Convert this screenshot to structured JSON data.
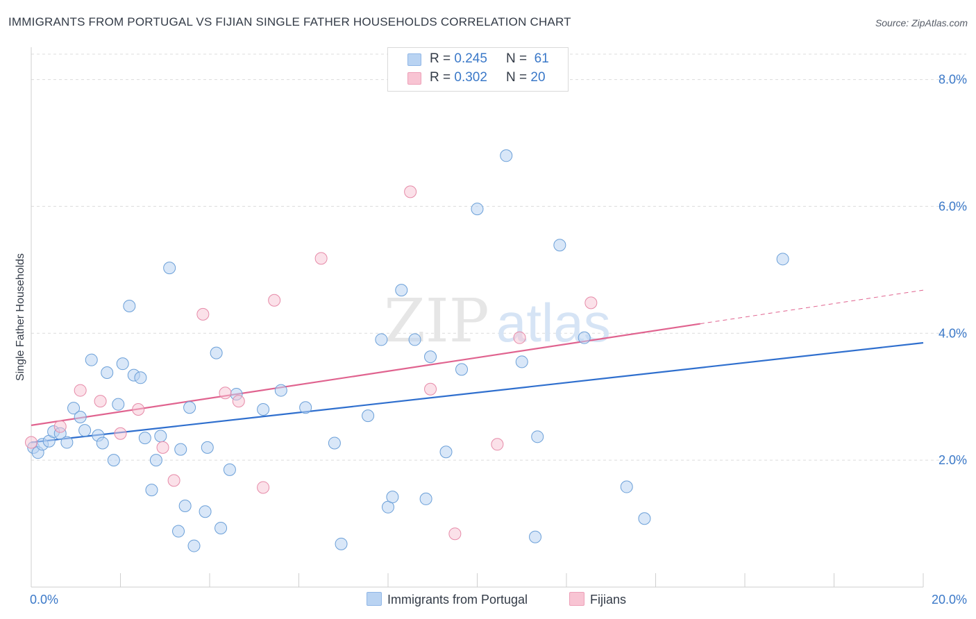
{
  "title": "IMMIGRANTS FROM PORTUGAL VS FIJIAN SINGLE FATHER HOUSEHOLDS CORRELATION CHART",
  "source": "Source: ZipAtlas.com",
  "watermark": {
    "zip": "ZIP",
    "atlas": "atlas"
  },
  "legend": {
    "r_label": "R =",
    "n_label": "N =",
    "rows": [
      {
        "r": "0.245",
        "n": "61"
      },
      {
        "r": "0.302",
        "n": "20"
      }
    ]
  },
  "colors": {
    "blue_fill": "#b9d3f2",
    "blue_stroke": "#6a9fd8",
    "blue_line": "#2f6fce",
    "pink_fill": "#f8c4d3",
    "pink_stroke": "#e68aa8",
    "pink_line": "#e0638f",
    "tick_text": "#3a78c8"
  },
  "chart_data": {
    "type": "scatter",
    "ylabel": "Single Father Households",
    "xlim": [
      0,
      20
    ],
    "ylim": [
      0,
      8
    ],
    "x_tick_labels": [
      "0.0%",
      "20.0%"
    ],
    "y_ticks": [
      2,
      4,
      6,
      8
    ],
    "y_tick_labels": [
      "2.0%",
      "4.0%",
      "6.0%",
      "8.0%"
    ],
    "grid": true,
    "series": [
      {
        "name": "Immigrants from Portugal",
        "color": "#b9d3f2",
        "trend": {
          "x": [
            0,
            20
          ],
          "y": [
            2.28,
            3.85
          ]
        },
        "points": [
          [
            0.05,
            2.2
          ],
          [
            0.15,
            2.12
          ],
          [
            0.25,
            2.25
          ],
          [
            0.4,
            2.3
          ],
          [
            0.5,
            2.45
          ],
          [
            0.65,
            2.42
          ],
          [
            0.8,
            2.28
          ],
          [
            0.95,
            2.82
          ],
          [
            1.1,
            2.68
          ],
          [
            1.2,
            2.47
          ],
          [
            1.35,
            3.58
          ],
          [
            1.5,
            2.39
          ],
          [
            1.6,
            2.27
          ],
          [
            1.7,
            3.38
          ],
          [
            1.85,
            2.0
          ],
          [
            1.95,
            2.88
          ],
          [
            2.05,
            3.52
          ],
          [
            2.2,
            4.43
          ],
          [
            2.3,
            3.34
          ],
          [
            2.45,
            3.3
          ],
          [
            2.55,
            2.35
          ],
          [
            2.7,
            1.53
          ],
          [
            2.8,
            2.0
          ],
          [
            2.9,
            2.38
          ],
          [
            3.1,
            5.03
          ],
          [
            3.3,
            0.88
          ],
          [
            3.35,
            2.17
          ],
          [
            3.45,
            1.28
          ],
          [
            3.55,
            2.83
          ],
          [
            3.65,
            0.65
          ],
          [
            3.9,
            1.19
          ],
          [
            3.95,
            2.2
          ],
          [
            4.15,
            3.69
          ],
          [
            4.25,
            0.93
          ],
          [
            4.45,
            1.85
          ],
          [
            4.6,
            3.04
          ],
          [
            5.2,
            2.8
          ],
          [
            5.6,
            3.1
          ],
          [
            6.15,
            2.83
          ],
          [
            6.8,
            2.27
          ],
          [
            6.95,
            0.68
          ],
          [
            7.55,
            2.7
          ],
          [
            7.85,
            3.9
          ],
          [
            8.0,
            1.26
          ],
          [
            8.1,
            1.42
          ],
          [
            8.3,
            4.68
          ],
          [
            8.6,
            3.9
          ],
          [
            8.85,
            1.39
          ],
          [
            8.95,
            3.63
          ],
          [
            9.3,
            2.13
          ],
          [
            9.65,
            3.43
          ],
          [
            10.0,
            5.96
          ],
          [
            10.65,
            6.8
          ],
          [
            11.0,
            3.55
          ],
          [
            11.3,
            0.79
          ],
          [
            11.85,
            5.39
          ],
          [
            12.4,
            3.93
          ],
          [
            13.35,
            1.58
          ],
          [
            13.75,
            1.08
          ],
          [
            16.85,
            5.17
          ],
          [
            11.35,
            2.37
          ]
        ]
      },
      {
        "name": "Fijians",
        "color": "#f8c4d3",
        "trend": {
          "x": [
            0,
            15
          ],
          "y": [
            2.55,
            4.15
          ]
        },
        "trend_dashed": {
          "x": [
            15,
            20
          ],
          "y": [
            4.15,
            4.68
          ]
        },
        "points": [
          [
            0.0,
            2.28
          ],
          [
            0.65,
            2.53
          ],
          [
            1.1,
            3.1
          ],
          [
            1.55,
            2.93
          ],
          [
            2.0,
            2.42
          ],
          [
            2.4,
            2.8
          ],
          [
            2.95,
            2.2
          ],
          [
            3.2,
            1.68
          ],
          [
            3.85,
            4.3
          ],
          [
            4.35,
            3.06
          ],
          [
            4.65,
            2.93
          ],
          [
            5.2,
            1.57
          ],
          [
            5.45,
            4.52
          ],
          [
            6.5,
            5.18
          ],
          [
            8.5,
            6.23
          ],
          [
            8.95,
            3.12
          ],
          [
            9.5,
            0.84
          ],
          [
            10.45,
            2.25
          ],
          [
            10.95,
            3.93
          ],
          [
            12.55,
            4.48
          ]
        ]
      }
    ]
  },
  "bottom_legend": [
    "Immigrants from Portugal",
    "Fijians"
  ]
}
